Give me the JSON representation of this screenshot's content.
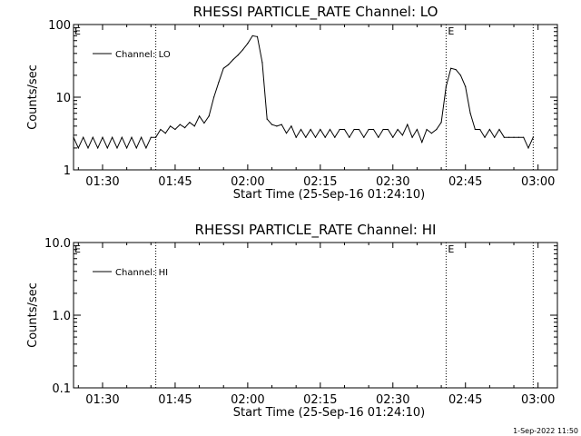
{
  "timestamp": "1-Sep-2022 11:50",
  "chart_data": [
    {
      "type": "line",
      "title": "RHESSI PARTICLE_RATE Channel: LO",
      "xlabel": "Start Time (25-Sep-16 01:24:10)",
      "ylabel": "Counts/sec",
      "yscale": "log",
      "ylim": [
        1,
        100
      ],
      "xlim": [
        "01:24",
        "03:04"
      ],
      "x_tick_labels": [
        "01:30",
        "01:45",
        "02:00",
        "02:15",
        "02:30",
        "02:45",
        "03:00"
      ],
      "y_tick_labels": [
        "1",
        "10",
        "100"
      ],
      "legend": {
        "position": "top-left",
        "entries": [
          "Channel: LO"
        ]
      },
      "event_markers": [
        {
          "time": "01:41",
          "label": ""
        },
        {
          "time": "02:41",
          "label": "E"
        },
        {
          "time": "02:59",
          "label": ""
        }
      ],
      "corner_label": "E",
      "series": [
        {
          "name": "Channel: LO",
          "points": [
            [
              "01:24",
              2.8
            ],
            [
              "01:25",
              2.0
            ],
            [
              "01:26",
              2.8
            ],
            [
              "01:27",
              2.0
            ],
            [
              "01:28",
              2.8
            ],
            [
              "01:29",
              2.0
            ],
            [
              "01:30",
              2.8
            ],
            [
              "01:31",
              2.0
            ],
            [
              "01:32",
              2.8
            ],
            [
              "01:33",
              2.0
            ],
            [
              "01:34",
              2.8
            ],
            [
              "01:35",
              2.0
            ],
            [
              "01:36",
              2.8
            ],
            [
              "01:37",
              2.0
            ],
            [
              "01:38",
              2.8
            ],
            [
              "01:39",
              2.0
            ],
            [
              "01:40",
              2.8
            ],
            [
              "01:41",
              2.8
            ],
            [
              "01:42",
              3.6
            ],
            [
              "01:43",
              3.2
            ],
            [
              "01:44",
              4.0
            ],
            [
              "01:45",
              3.6
            ],
            [
              "01:46",
              4.2
            ],
            [
              "01:47",
              3.8
            ],
            [
              "01:48",
              4.5
            ],
            [
              "01:49",
              4.0
            ],
            [
              "01:50",
              5.5
            ],
            [
              "01:51",
              4.4
            ],
            [
              "01:52",
              5.5
            ],
            [
              "01:53",
              10
            ],
            [
              "01:54",
              16
            ],
            [
              "01:55",
              25
            ],
            [
              "01:56",
              28
            ],
            [
              "01:57",
              33
            ],
            [
              "01:58",
              38
            ],
            [
              "01:59",
              45
            ],
            [
              "02:00",
              55
            ],
            [
              "02:01",
              70
            ],
            [
              "02:02",
              68
            ],
            [
              "02:03",
              30
            ],
            [
              "02:04",
              5.0
            ],
            [
              "02:05",
              4.2
            ],
            [
              "02:06",
              4.0
            ],
            [
              "02:07",
              4.2
            ],
            [
              "02:08",
              3.2
            ],
            [
              "02:09",
              4.0
            ],
            [
              "02:10",
              2.8
            ],
            [
              "02:11",
              3.6
            ],
            [
              "02:12",
              2.8
            ],
            [
              "02:13",
              3.6
            ],
            [
              "02:14",
              2.8
            ],
            [
              "02:15",
              3.6
            ],
            [
              "02:16",
              2.8
            ],
            [
              "02:17",
              3.6
            ],
            [
              "02:18",
              2.8
            ],
            [
              "02:19",
              3.6
            ],
            [
              "02:20",
              3.6
            ],
            [
              "02:21",
              2.8
            ],
            [
              "02:22",
              3.6
            ],
            [
              "02:23",
              3.6
            ],
            [
              "02:24",
              2.8
            ],
            [
              "02:25",
              3.6
            ],
            [
              "02:26",
              3.6
            ],
            [
              "02:27",
              2.8
            ],
            [
              "02:28",
              3.6
            ],
            [
              "02:29",
              3.6
            ],
            [
              "02:30",
              2.8
            ],
            [
              "02:31",
              3.6
            ],
            [
              "02:32",
              3.0
            ],
            [
              "02:33",
              4.2
            ],
            [
              "02:34",
              2.8
            ],
            [
              "02:35",
              3.6
            ],
            [
              "02:36",
              2.4
            ],
            [
              "02:37",
              3.6
            ],
            [
              "02:38",
              3.2
            ],
            [
              "02:39",
              3.6
            ],
            [
              "02:40",
              4.5
            ],
            [
              "02:41",
              14
            ],
            [
              "02:42",
              25
            ],
            [
              "02:43",
              24
            ],
            [
              "02:44",
              20
            ],
            [
              "02:45",
              14
            ],
            [
              "02:46",
              6
            ],
            [
              "02:47",
              3.6
            ],
            [
              "02:48",
              3.6
            ],
            [
              "02:49",
              2.8
            ],
            [
              "02:50",
              3.6
            ],
            [
              "02:51",
              2.8
            ],
            [
              "02:52",
              3.6
            ],
            [
              "02:53",
              2.8
            ],
            [
              "02:54",
              2.8
            ],
            [
              "02:55",
              2.8
            ],
            [
              "02:56",
              2.8
            ],
            [
              "02:57",
              2.8
            ],
            [
              "02:58",
              2.0
            ],
            [
              "02:59",
              2.8
            ]
          ]
        }
      ]
    },
    {
      "type": "line",
      "title": "RHESSI PARTICLE_RATE Channel: HI",
      "xlabel": "Start Time (25-Sep-16 01:24:10)",
      "ylabel": "Counts/sec",
      "yscale": "log",
      "ylim": [
        0.1,
        10
      ],
      "xlim": [
        "01:24",
        "03:04"
      ],
      "x_tick_labels": [
        "01:30",
        "01:45",
        "02:00",
        "02:15",
        "02:30",
        "02:45",
        "03:00"
      ],
      "y_tick_labels": [
        "0.1",
        "1.0",
        "10.0"
      ],
      "legend": {
        "position": "top-left",
        "entries": [
          "Channel: HI"
        ]
      },
      "event_markers": [
        {
          "time": "01:41",
          "label": ""
        },
        {
          "time": "02:41",
          "label": "E"
        },
        {
          "time": "02:59",
          "label": ""
        }
      ],
      "corner_label": "E",
      "series": [
        {
          "name": "Channel: HI",
          "points": []
        }
      ]
    }
  ]
}
